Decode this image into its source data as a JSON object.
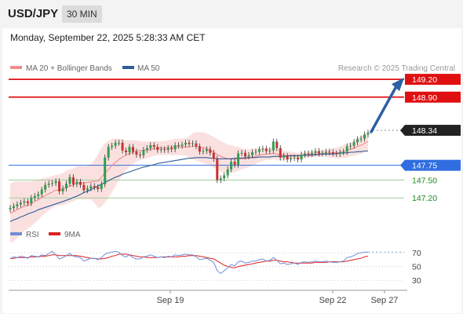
{
  "header": {
    "symbol": "USD/JPY",
    "timeframe": "30 MIN"
  },
  "timestamp": "Monday, September 22, 2025 5:28:33 AM CET",
  "legend": {
    "ma20_label": "MA 20 + Bollinger Bands",
    "ma50_label": "MA 50",
    "ma20_color": "#f08c8c",
    "ma50_color": "#2e5c9a"
  },
  "attribution": "Research © 2025 Trading Central",
  "rsi_legend": {
    "rsi_label": "RSI",
    "ma_label": "9MA",
    "rsi_color": "#6e8fd8",
    "ma_color": "#e02020"
  },
  "chart_data": {
    "type": "candlestick",
    "instrument": "USD/JPY",
    "timeframe": "30 MIN",
    "x_tick_labels": [
      "Sep 19",
      "Sep 22",
      "Sep 27"
    ],
    "price_range": [
      146.7,
      149.4
    ],
    "current_price": 148.34,
    "levels": [
      {
        "value": 149.2,
        "label": "149.20",
        "type": "resistance",
        "color": "#e01010"
      },
      {
        "value": 148.9,
        "label": "148.90",
        "type": "resistance",
        "color": "#e01010"
      },
      {
        "value": 148.34,
        "label": "148.34",
        "type": "last",
        "color": "#222222"
      },
      {
        "value": 147.75,
        "label": "147.75",
        "type": "pivot",
        "color": "#2f6de0"
      },
      {
        "value": 147.5,
        "label": "147.50",
        "type": "support",
        "color": "#1a8a1a"
      },
      {
        "value": 147.2,
        "label": "147.20",
        "type": "support",
        "color": "#1a8a1a"
      }
    ],
    "close": [
      147.03,
      147.06,
      147.09,
      147.12,
      147.14,
      147.11,
      147.2,
      147.23,
      147.26,
      147.34,
      147.42,
      147.44,
      147.45,
      147.48,
      147.31,
      147.36,
      147.44,
      147.55,
      147.43,
      147.47,
      147.42,
      147.33,
      147.36,
      147.4,
      147.38,
      147.35,
      147.43,
      147.88,
      148.06,
      148.08,
      148.13,
      148.13,
      148.0,
      147.97,
      148.06,
      147.98,
      147.93,
      147.92,
      148.01,
      148.04,
      148.09,
      148.06,
      148.01,
      148.02,
      148.01,
      148.04,
      148.02,
      148.09,
      148.08,
      148.1,
      148.13,
      148.11,
      148.12,
      148.07,
      147.98,
      147.99,
      148.02,
      147.96,
      147.86,
      147.5,
      147.53,
      147.58,
      147.68,
      147.81,
      147.76,
      147.95,
      147.96,
      147.9,
      147.92,
      147.97,
      147.98,
      148.02,
      148.03,
      147.99,
      148.0,
      148.15,
      148.04,
      147.88,
      147.91,
      147.85,
      147.87,
      147.88,
      147.85,
      147.93,
      147.95,
      147.94,
      147.96,
      147.99,
      147.95,
      147.96,
      147.98,
      147.97,
      147.95,
      147.94,
      147.97,
      147.98,
      148.07,
      148.08,
      148.14,
      148.19,
      148.2,
      148.27,
      148.3
    ],
    "ma20": [
      146.94,
      146.97,
      147.0,
      147.03,
      147.06,
      147.08,
      147.1,
      147.14,
      147.17,
      147.21,
      147.24,
      147.27,
      147.3,
      147.33,
      147.33,
      147.35,
      147.38,
      147.4,
      147.42,
      147.45,
      147.46,
      147.45,
      147.46,
      147.47,
      147.48,
      147.48,
      147.55,
      147.62,
      147.68,
      147.75,
      147.8,
      147.85,
      147.89,
      147.92,
      147.95,
      147.97,
      147.99,
      148.0,
      148.0,
      148.01,
      148.02,
      148.03,
      148.04,
      148.04,
      148.04,
      148.05,
      148.05,
      148.06,
      148.06,
      148.06,
      148.06,
      148.06,
      148.07,
      148.07,
      148.06,
      148.05,
      148.03,
      148.0,
      147.97,
      147.93,
      147.9,
      147.88,
      147.86,
      147.86,
      147.85,
      147.86,
      147.86,
      147.86,
      147.87,
      147.89,
      147.9,
      147.92,
      147.93,
      147.94,
      147.94,
      147.95,
      147.94,
      147.92,
      147.92,
      147.91,
      147.92,
      147.92,
      147.91,
      147.91,
      147.92,
      147.93,
      147.94,
      147.94,
      147.94,
      147.95,
      147.95,
      147.95,
      147.96,
      147.96,
      147.97,
      147.98,
      148.0,
      148.02,
      148.04,
      148.07,
      148.09,
      148.12,
      148.15
    ],
    "ma50": [
      146.8,
      146.83,
      146.85,
      146.88,
      146.9,
      146.93,
      146.95,
      146.97,
      147.0,
      147.02,
      147.04,
      147.06,
      147.08,
      147.1,
      147.12,
      147.14,
      147.16,
      147.18,
      147.21,
      147.23,
      147.26,
      147.29,
      147.31,
      147.34,
      147.37,
      147.4,
      147.43,
      147.46,
      147.49,
      147.52,
      147.55,
      147.57,
      147.6,
      147.62,
      147.64,
      147.66,
      147.68,
      147.7,
      147.72,
      147.73,
      147.75,
      147.76,
      147.78,
      147.79,
      147.8,
      147.81,
      147.82,
      147.83,
      147.84,
      147.85,
      147.86,
      147.87,
      147.87,
      147.88,
      147.88,
      147.88,
      147.88,
      147.87,
      147.87,
      147.86,
      147.86,
      147.86,
      147.86,
      147.86,
      147.87,
      147.87,
      147.87,
      147.88,
      147.88,
      147.88,
      147.88,
      147.89,
      147.89,
      147.89,
      147.89,
      147.9,
      147.9,
      147.9,
      147.9,
      147.91,
      147.91,
      147.91,
      147.91,
      147.92,
      147.92,
      147.92,
      147.92,
      147.93,
      147.93,
      147.94,
      147.94,
      147.94,
      147.94,
      147.95,
      147.95,
      147.96,
      147.96,
      147.97,
      147.97,
      147.98,
      147.98,
      147.99,
      147.99
    ],
    "bb_band": [
      0.5,
      0.5,
      0.48,
      0.45,
      0.42,
      0.4,
      0.38,
      0.36,
      0.34,
      0.32,
      0.3,
      0.28,
      0.27,
      0.26,
      0.26,
      0.27,
      0.28,
      0.28,
      0.28,
      0.28,
      0.28,
      0.28,
      0.28,
      0.3,
      0.36,
      0.45,
      0.5,
      0.5,
      0.48,
      0.45,
      0.4,
      0.35,
      0.3,
      0.25,
      0.22,
      0.2,
      0.18,
      0.16,
      0.15,
      0.14,
      0.13,
      0.12,
      0.12,
      0.12,
      0.12,
      0.12,
      0.13,
      0.14,
      0.14,
      0.14,
      0.15,
      0.18,
      0.22,
      0.24,
      0.25,
      0.26,
      0.26,
      0.26,
      0.26,
      0.26,
      0.26,
      0.25,
      0.24,
      0.23,
      0.22,
      0.2,
      0.18,
      0.16,
      0.15,
      0.14,
      0.13,
      0.12,
      0.11,
      0.1,
      0.1,
      0.1,
      0.1,
      0.09,
      0.08,
      0.07,
      0.06,
      0.05,
      0.05,
      0.05,
      0.05,
      0.05,
      0.05,
      0.05,
      0.05,
      0.05,
      0.06,
      0.07,
      0.08,
      0.09,
      0.1,
      0.11,
      0.12,
      0.12,
      0.13,
      0.14,
      0.15,
      0.15,
      0.15
    ],
    "rsi_axis": [
      30,
      50,
      70
    ],
    "rsi_range": [
      20,
      85
    ],
    "rsi": [
      62,
      64,
      63,
      65,
      64,
      62,
      66,
      65,
      64,
      67,
      66,
      69,
      72,
      67,
      61,
      63,
      66,
      69,
      65,
      64,
      63,
      58,
      60,
      62,
      62,
      60,
      63,
      68,
      70,
      71,
      72,
      71,
      66,
      64,
      67,
      63,
      61,
      61,
      64,
      65,
      67,
      65,
      63,
      64,
      63,
      65,
      64,
      67,
      66,
      67,
      68,
      67,
      67,
      64,
      60,
      61,
      62,
      59,
      56,
      44,
      40,
      44,
      48,
      53,
      51,
      57,
      58,
      55,
      56,
      58,
      58,
      60,
      61,
      58,
      59,
      63,
      59,
      54,
      55,
      53,
      54,
      55,
      53,
      56,
      57,
      56,
      57,
      58,
      57,
      57,
      58,
      57,
      56,
      56,
      57,
      58,
      63,
      64,
      66,
      69,
      70,
      71,
      71
    ],
    "rsi_ma": [
      62,
      62,
      63,
      63,
      63,
      63,
      64,
      64,
      64,
      65,
      65,
      66,
      67,
      67,
      66,
      66,
      66,
      66,
      66,
      66,
      65,
      64,
      63,
      62,
      62,
      61,
      61,
      62,
      63,
      65,
      66,
      68,
      68,
      68,
      67,
      66,
      65,
      64,
      64,
      63,
      63,
      63,
      63,
      64,
      64,
      64,
      64,
      64,
      64,
      65,
      65,
      66,
      66,
      66,
      65,
      64,
      63,
      62,
      61,
      58,
      55,
      52,
      50,
      49,
      48,
      50,
      51,
      52,
      53,
      54,
      55,
      56,
      57,
      58,
      58,
      59,
      59,
      58,
      57,
      57,
      56,
      55,
      55,
      55,
      55,
      55,
      55,
      56,
      56,
      56,
      56,
      57,
      57,
      57,
      57,
      57,
      58,
      59,
      60,
      61,
      62,
      64,
      65
    ]
  }
}
